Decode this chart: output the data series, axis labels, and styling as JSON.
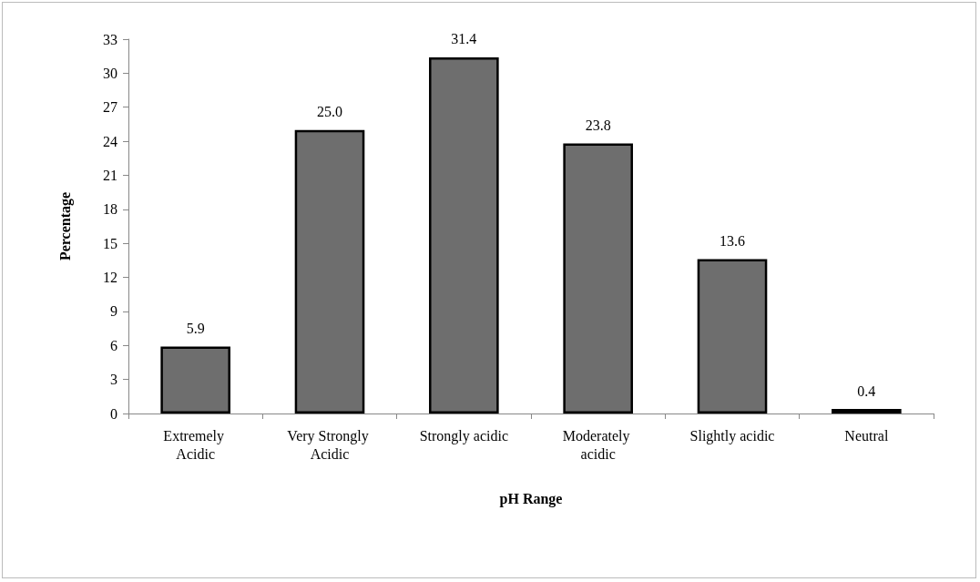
{
  "chart_data": {
    "type": "bar",
    "xlabel": "pH Range",
    "ylabel": "Percentage",
    "categories": [
      "Extremely Acidic",
      "Very Strongly Acidic",
      "Strongly acidic",
      "Moderately acidic",
      "Slightly acidic",
      "Neutral"
    ],
    "values": [
      5.9,
      25.0,
      31.4,
      23.8,
      13.6,
      0.4
    ],
    "value_labels": [
      "5.9",
      "25.0",
      "31.4",
      "23.8",
      "13.6",
      "0.4"
    ],
    "color": "#6e6e6e",
    "ylim": [
      0,
      33
    ],
    "yticks": [
      0,
      3,
      6,
      9,
      12,
      15,
      18,
      21,
      24,
      27,
      30,
      33
    ],
    "grid": false
  }
}
